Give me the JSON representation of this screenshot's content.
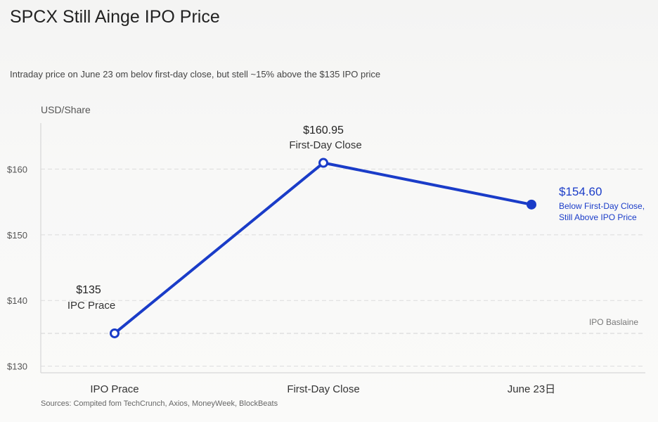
{
  "chart_data": {
    "type": "line",
    "title": "SPCX Still Ainge IPO Price",
    "subtitle": "Intraday price on June 23 om belov first-day close, but stell ~15% above the $135 IPO price",
    "ylabel": "USD/Share",
    "xlabel": "",
    "categories": [
      "IPO Prace",
      "First-Day Close",
      "June 23日"
    ],
    "values": [
      135,
      160.95,
      154.6
    ],
    "ylim": [
      129,
      167
    ],
    "yticks": [
      130,
      140,
      150,
      160
    ],
    "ytick_labels": [
      "$130",
      "$140",
      "$150",
      "$160"
    ],
    "grid": true,
    "line_color": "#1a3cc8",
    "annotations": [
      {
        "value_text": "$135",
        "sub_text": "IPC Prace"
      },
      {
        "value_text": "$160.95",
        "sub_text": "First-Day Close"
      },
      {
        "value_text": "$154.60",
        "sub_text_1": "Below First-Day Close,",
        "sub_text_2": "Still Above IPO Price"
      }
    ],
    "reference_line": {
      "value": 135,
      "label": "IPO Baslaine"
    },
    "source": "Sources: Compited fom TechCrunch, Axios, MoneyWeek, BlockBeats"
  }
}
